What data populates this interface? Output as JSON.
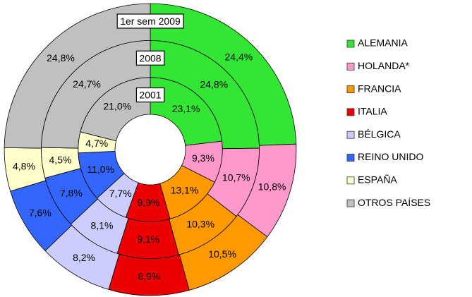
{
  "chart_data": {
    "type": "donut",
    "categories": [
      "ALEMANIA",
      "HOLANDA*",
      "FRANCIA",
      "ITALIA",
      "BÉLGICA",
      "REINO UNIDO",
      "ESPAÑA",
      "OTROS PAÍSES"
    ],
    "colors": [
      "#33e633",
      "#ff99cc",
      "#ff9900",
      "#ee0000",
      "#ccccff",
      "#3366ff",
      "#ffffcc",
      "#c0c0c0"
    ],
    "series": [
      {
        "name": "2001",
        "values": [
          23.1,
          9.3,
          13.1,
          9.9,
          7.7,
          11.0,
          4.7,
          21.0
        ],
        "value_labels": [
          "23,1%",
          "9,3%",
          "13,1%",
          "9,9%",
          "7,7%",
          "11,0%",
          "4,7%",
          "21,0%"
        ]
      },
      {
        "name": "2008",
        "values": [
          24.8,
          10.7,
          10.3,
          9.1,
          8.1,
          7.8,
          4.5,
          24.7
        ],
        "value_labels": [
          "24,8%",
          "10,7%",
          "10,3%",
          "9,1%",
          "8,1%",
          "7,8%",
          "4,5%",
          "24,7%"
        ]
      },
      {
        "name": "1er sem 2009",
        "values": [
          24.4,
          10.8,
          10.5,
          8.9,
          8.2,
          7.6,
          4.8,
          24.8
        ],
        "value_labels": [
          "24,4%",
          "10,8%",
          "10,5%",
          "8,9%",
          "8,2%",
          "7,6%",
          "4,8%",
          "24,8%"
        ]
      }
    ],
    "legend": "right"
  }
}
